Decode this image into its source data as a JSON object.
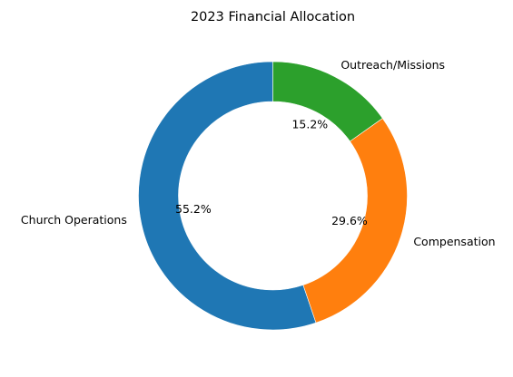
{
  "chart_data": {
    "type": "pie",
    "variant": "donut",
    "title": "2023 Financial Allocation",
    "start": "top",
    "direction": "counterclockwise",
    "grid": false,
    "legend": "none",
    "slices": [
      {
        "label": "Church Operations",
        "value": 55.2,
        "pct_text": "55.2%",
        "color": "#1f77b4"
      },
      {
        "label": "Compensation",
        "value": 29.6,
        "pct_text": "29.6%",
        "color": "#ff7f0e"
      },
      {
        "label": "Outreach/Missions",
        "value": 15.2,
        "pct_text": "15.2%",
        "color": "#2ca02c"
      }
    ]
  }
}
